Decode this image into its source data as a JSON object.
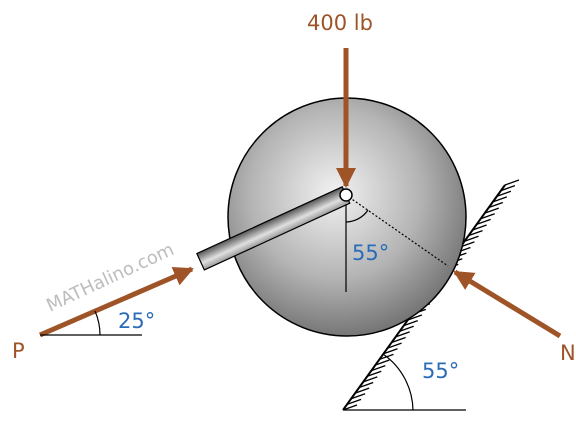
{
  "labels": {
    "force_top": "400 lb",
    "angle_center": "55°",
    "angle_p": "25°",
    "p": "P",
    "n": "N",
    "angle_incline": "55°",
    "watermark": "MATHalino.com"
  }
}
